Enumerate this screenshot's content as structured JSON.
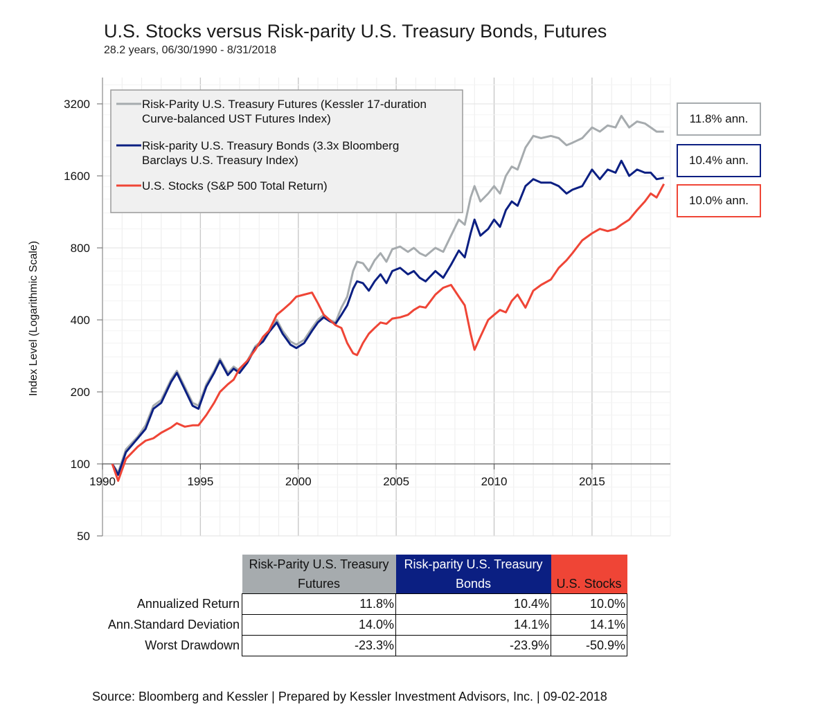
{
  "title": "U.S. Stocks versus Risk-parity U.S. Treasury Bonds, Futures",
  "subtitle": "28.2 years, 06/30/1990 - 8/31/2018",
  "source": "Source: Bloomberg and Kessler | Prepared by Kessler Investment Advisors, Inc. | 09-02-2018",
  "colors": {
    "futures": "#a6abae",
    "bonds": "#0b1f82",
    "stocks": "#ef4536"
  },
  "annotations": [
    {
      "series": "futures",
      "text": "11.8% ann."
    },
    {
      "series": "bonds",
      "text": "10.4% ann."
    },
    {
      "series": "stocks",
      "text": "10.0% ann."
    }
  ],
  "table": {
    "headers": [
      "Risk-Parity U.S. Treasury Futures",
      "Risk-parity U.S. Treasury Bonds",
      "U.S. Stocks"
    ],
    "rows": [
      {
        "label": "Annualized Return",
        "values": [
          "11.8%",
          "10.4%",
          "10.0%"
        ]
      },
      {
        "label": "Ann.Standard Deviation",
        "values": [
          "14.0%",
          "14.1%",
          "14.1%"
        ]
      },
      {
        "label": "Worst Drawdown",
        "values": [
          "-23.3%",
          "-23.9%",
          "-50.9%"
        ]
      }
    ]
  },
  "chart_data": {
    "type": "line",
    "title": "U.S. Stocks versus Risk-parity U.S. Treasury Bonds, Futures",
    "ylabel": "Index Level (Logarithmic Scale)",
    "xlabel": "",
    "yscale": "log2",
    "ylim": [
      50,
      4000
    ],
    "xlim": [
      1990,
      2019
    ],
    "yticks": [
      50,
      100,
      200,
      400,
      800,
      1600,
      3200
    ],
    "xticks": [
      1990,
      1995,
      2000,
      2005,
      2010,
      2015
    ],
    "legend_position": "top-left",
    "series": [
      {
        "key": "futures",
        "name": "Risk-Parity U.S. Treasury Futures (Kessler 17-duration Curve-balanced UST Futures Index)",
        "points": [
          [
            1990.5,
            100
          ],
          [
            1990.8,
            92
          ],
          [
            1991.2,
            115
          ],
          [
            1991.8,
            130
          ],
          [
            1992.2,
            145
          ],
          [
            1992.6,
            175
          ],
          [
            1993.0,
            185
          ],
          [
            1993.5,
            225
          ],
          [
            1993.8,
            245
          ],
          [
            1994.2,
            210
          ],
          [
            1994.6,
            180
          ],
          [
            1994.9,
            175
          ],
          [
            1995.3,
            215
          ],
          [
            1995.7,
            245
          ],
          [
            1996.0,
            275
          ],
          [
            1996.4,
            240
          ],
          [
            1996.7,
            255
          ],
          [
            1997.0,
            245
          ],
          [
            1997.4,
            270
          ],
          [
            1997.8,
            310
          ],
          [
            1998.2,
            330
          ],
          [
            1998.5,
            360
          ],
          [
            1998.9,
            400
          ],
          [
            1999.2,
            360
          ],
          [
            1999.6,
            325
          ],
          [
            1999.9,
            315
          ],
          [
            2000.3,
            330
          ],
          [
            2000.7,
            370
          ],
          [
            2001.0,
            400
          ],
          [
            2001.3,
            420
          ],
          [
            2001.6,
            400
          ],
          [
            2001.9,
            390
          ],
          [
            2002.2,
            450
          ],
          [
            2002.5,
            500
          ],
          [
            2002.8,
            640
          ],
          [
            2003.0,
            700
          ],
          [
            2003.3,
            690
          ],
          [
            2003.6,
            640
          ],
          [
            2003.9,
            710
          ],
          [
            2004.2,
            760
          ],
          [
            2004.5,
            700
          ],
          [
            2004.8,
            790
          ],
          [
            2005.2,
            810
          ],
          [
            2005.6,
            770
          ],
          [
            2005.9,
            800
          ],
          [
            2006.2,
            760
          ],
          [
            2006.5,
            740
          ],
          [
            2007.0,
            800
          ],
          [
            2007.4,
            770
          ],
          [
            2007.8,
            900
          ],
          [
            2008.2,
            1050
          ],
          [
            2008.5,
            1000
          ],
          [
            2008.8,
            1300
          ],
          [
            2009.0,
            1450
          ],
          [
            2009.3,
            1250
          ],
          [
            2009.7,
            1350
          ],
          [
            2010.0,
            1450
          ],
          [
            2010.3,
            1350
          ],
          [
            2010.6,
            1600
          ],
          [
            2010.9,
            1750
          ],
          [
            2011.2,
            1700
          ],
          [
            2011.6,
            2100
          ],
          [
            2012.0,
            2350
          ],
          [
            2012.4,
            2300
          ],
          [
            2012.9,
            2350
          ],
          [
            2013.3,
            2300
          ],
          [
            2013.7,
            2150
          ],
          [
            2014.0,
            2200
          ],
          [
            2014.5,
            2300
          ],
          [
            2015.0,
            2550
          ],
          [
            2015.4,
            2450
          ],
          [
            2015.8,
            2600
          ],
          [
            2016.2,
            2550
          ],
          [
            2016.5,
            2850
          ],
          [
            2016.9,
            2550
          ],
          [
            2017.3,
            2700
          ],
          [
            2017.7,
            2650
          ],
          [
            2018.0,
            2550
          ],
          [
            2018.3,
            2450
          ],
          [
            2018.67,
            2450
          ]
        ]
      },
      {
        "key": "bonds",
        "name": "Risk-parity U.S. Treasury Bonds (3.3x Bloomberg Barclays U.S. Treasury Index)",
        "points": [
          [
            1990.5,
            100
          ],
          [
            1990.8,
            90
          ],
          [
            1991.2,
            112
          ],
          [
            1991.8,
            128
          ],
          [
            1992.2,
            140
          ],
          [
            1992.6,
            170
          ],
          [
            1993.0,
            180
          ],
          [
            1993.5,
            220
          ],
          [
            1993.8,
            240
          ],
          [
            1994.2,
            205
          ],
          [
            1994.6,
            175
          ],
          [
            1994.9,
            170
          ],
          [
            1995.3,
            210
          ],
          [
            1995.7,
            240
          ],
          [
            1996.0,
            270
          ],
          [
            1996.4,
            235
          ],
          [
            1996.7,
            250
          ],
          [
            1997.0,
            240
          ],
          [
            1997.4,
            265
          ],
          [
            1997.8,
            305
          ],
          [
            1998.2,
            325
          ],
          [
            1998.5,
            355
          ],
          [
            1998.9,
            390
          ],
          [
            1999.2,
            350
          ],
          [
            1999.6,
            315
          ],
          [
            1999.9,
            305
          ],
          [
            2000.3,
            320
          ],
          [
            2000.7,
            360
          ],
          [
            2001.0,
            390
          ],
          [
            2001.3,
            410
          ],
          [
            2001.6,
            395
          ],
          [
            2001.9,
            385
          ],
          [
            2002.2,
            420
          ],
          [
            2002.5,
            460
          ],
          [
            2002.8,
            540
          ],
          [
            2003.0,
            580
          ],
          [
            2003.3,
            570
          ],
          [
            2003.6,
            530
          ],
          [
            2003.9,
            580
          ],
          [
            2004.2,
            620
          ],
          [
            2004.5,
            570
          ],
          [
            2004.8,
            640
          ],
          [
            2005.2,
            660
          ],
          [
            2005.6,
            620
          ],
          [
            2005.9,
            640
          ],
          [
            2006.2,
            600
          ],
          [
            2006.5,
            580
          ],
          [
            2007.0,
            640
          ],
          [
            2007.4,
            600
          ],
          [
            2007.8,
            680
          ],
          [
            2008.2,
            780
          ],
          [
            2008.5,
            730
          ],
          [
            2008.8,
            920
          ],
          [
            2009.0,
            1050
          ],
          [
            2009.3,
            900
          ],
          [
            2009.7,
            960
          ],
          [
            2010.0,
            1050
          ],
          [
            2010.3,
            980
          ],
          [
            2010.6,
            1150
          ],
          [
            2010.9,
            1250
          ],
          [
            2011.2,
            1200
          ],
          [
            2011.6,
            1450
          ],
          [
            2012.0,
            1550
          ],
          [
            2012.4,
            1500
          ],
          [
            2012.9,
            1500
          ],
          [
            2013.3,
            1450
          ],
          [
            2013.7,
            1350
          ],
          [
            2014.0,
            1400
          ],
          [
            2014.5,
            1450
          ],
          [
            2015.0,
            1700
          ],
          [
            2015.4,
            1550
          ],
          [
            2015.8,
            1700
          ],
          [
            2016.2,
            1650
          ],
          [
            2016.5,
            1850
          ],
          [
            2016.9,
            1600
          ],
          [
            2017.3,
            1700
          ],
          [
            2017.7,
            1650
          ],
          [
            2018.0,
            1650
          ],
          [
            2018.3,
            1550
          ],
          [
            2018.67,
            1570
          ]
        ]
      },
      {
        "key": "stocks",
        "name": "U.S. Stocks (S&P 500 Total Return)",
        "points": [
          [
            1990.5,
            100
          ],
          [
            1990.8,
            85
          ],
          [
            1991.2,
            105
          ],
          [
            1991.8,
            118
          ],
          [
            1992.2,
            125
          ],
          [
            1992.6,
            128
          ],
          [
            1993.0,
            135
          ],
          [
            1993.5,
            142
          ],
          [
            1993.8,
            148
          ],
          [
            1994.2,
            143
          ],
          [
            1994.6,
            145
          ],
          [
            1994.9,
            145
          ],
          [
            1995.3,
            160
          ],
          [
            1995.7,
            180
          ],
          [
            1996.0,
            200
          ],
          [
            1996.4,
            215
          ],
          [
            1996.7,
            225
          ],
          [
            1997.0,
            250
          ],
          [
            1997.4,
            270
          ],
          [
            1997.8,
            300
          ],
          [
            1998.2,
            340
          ],
          [
            1998.5,
            360
          ],
          [
            1998.9,
            420
          ],
          [
            1999.2,
            440
          ],
          [
            1999.6,
            470
          ],
          [
            1999.9,
            500
          ],
          [
            2000.3,
            510
          ],
          [
            2000.7,
            520
          ],
          [
            2001.0,
            470
          ],
          [
            2001.3,
            420
          ],
          [
            2001.6,
            400
          ],
          [
            2001.9,
            380
          ],
          [
            2002.2,
            370
          ],
          [
            2002.5,
            320
          ],
          [
            2002.8,
            290
          ],
          [
            2003.0,
            285
          ],
          [
            2003.3,
            320
          ],
          [
            2003.6,
            350
          ],
          [
            2003.9,
            370
          ],
          [
            2004.2,
            390
          ],
          [
            2004.5,
            385
          ],
          [
            2004.8,
            405
          ],
          [
            2005.2,
            410
          ],
          [
            2005.6,
            420
          ],
          [
            2005.9,
            440
          ],
          [
            2006.2,
            455
          ],
          [
            2006.5,
            450
          ],
          [
            2007.0,
            510
          ],
          [
            2007.4,
            545
          ],
          [
            2007.8,
            560
          ],
          [
            2008.2,
            500
          ],
          [
            2008.5,
            460
          ],
          [
            2008.8,
            350
          ],
          [
            2009.0,
            300
          ],
          [
            2009.3,
            340
          ],
          [
            2009.7,
            400
          ],
          [
            2010.0,
            420
          ],
          [
            2010.3,
            440
          ],
          [
            2010.6,
            430
          ],
          [
            2010.9,
            480
          ],
          [
            2011.2,
            510
          ],
          [
            2011.6,
            450
          ],
          [
            2012.0,
            530
          ],
          [
            2012.4,
            560
          ],
          [
            2012.9,
            590
          ],
          [
            2013.3,
            660
          ],
          [
            2013.7,
            710
          ],
          [
            2014.0,
            760
          ],
          [
            2014.5,
            860
          ],
          [
            2015.0,
            920
          ],
          [
            2015.4,
            960
          ],
          [
            2015.8,
            940
          ],
          [
            2016.2,
            960
          ],
          [
            2016.5,
            1000
          ],
          [
            2016.9,
            1050
          ],
          [
            2017.3,
            1150
          ],
          [
            2017.7,
            1250
          ],
          [
            2018.0,
            1350
          ],
          [
            2018.3,
            1300
          ],
          [
            2018.67,
            1480
          ]
        ]
      }
    ]
  }
}
